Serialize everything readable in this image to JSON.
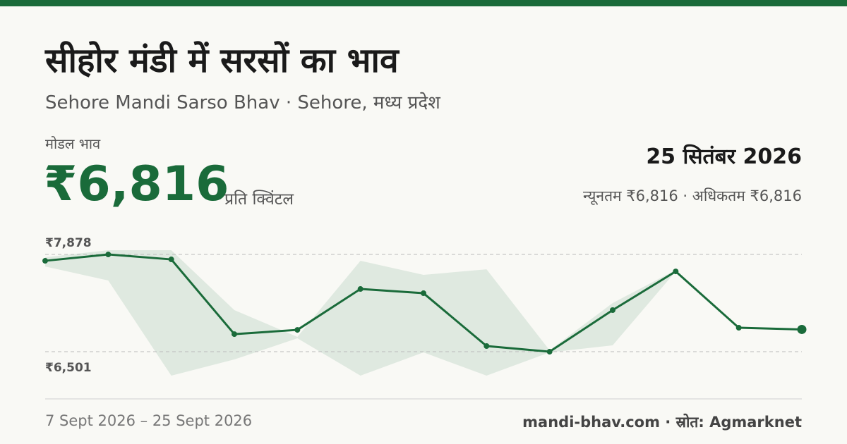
{
  "header": {
    "title": "सीहोर मंडी में सरसों का भाव",
    "subtitle": "Sehore Mandi Sarso Bhav · Sehore, मध्य प्रदेश"
  },
  "price": {
    "label": "मोडल भाव",
    "value": "₹6,816",
    "unit": "प्रति क्विंटल",
    "date": "25 सितंबर 2026",
    "range": "न्यूनतम ₹6,816 · अधिकतम ₹6,816"
  },
  "chart_data": {
    "type": "line",
    "color": "#1a6b3a",
    "values": [
      7788,
      7878,
      7808,
      6750,
      6810,
      7389,
      7329,
      6581,
      6501,
      7090,
      7638,
      6840,
      6816
    ],
    "band": {
      "color": "#dfe9e0",
      "low": [
        7708,
        7509,
        6162,
        6391,
        6691,
        6162,
        6491,
        6162,
        6491,
        6591,
        7638,
        6840,
        6816
      ],
      "high": [
        7838,
        7938,
        7938,
        7090,
        6711,
        7788,
        7589,
        7668,
        6521,
        7190,
        7658,
        6840,
        6816
      ]
    },
    "ylim": [
      6162,
      8088
    ],
    "yticks": [
      {
        "value": 6501,
        "label": "₹6,501"
      },
      {
        "value": 7878,
        "label": "₹7,878"
      }
    ],
    "grid": true
  },
  "footer": {
    "period": "7 Sept 2026 – 25 Sept 2026",
    "source": "mandi-bhav.com · स्रोत: Agmarknet"
  }
}
